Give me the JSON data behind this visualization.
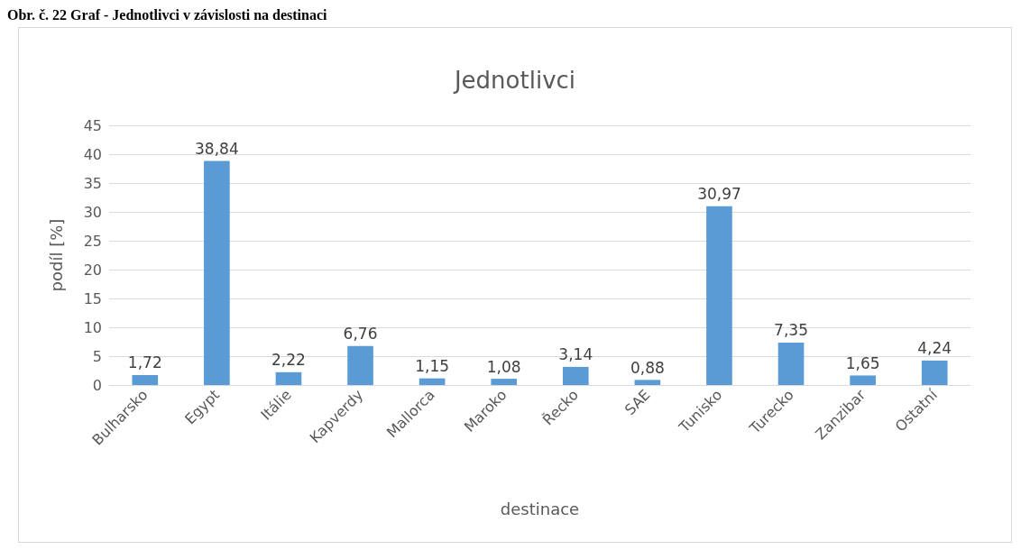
{
  "chart_data": {
    "type": "bar",
    "title": "Jednotlivci",
    "xlabel": "destinace",
    "ylabel": "podíl [%]",
    "annotations": [
      "Obr. č. 22 Graf - Jednotlivci v závislosti na destinaci"
    ],
    "categories": [
      "Bulharsko",
      "Egypt",
      "Itálie",
      "Kapverdy",
      "Mallorca",
      "Maroko",
      "Řecko",
      "SAE",
      "Tunisko",
      "Turecko",
      "Zanzibar",
      "Ostatní"
    ],
    "values": [
      1.72,
      38.84,
      2.22,
      6.76,
      1.15,
      1.08,
      3.14,
      0.88,
      30.97,
      7.35,
      1.65,
      4.24
    ],
    "value_labels": [
      "1,72",
      "38,84",
      "2,22",
      "6,76",
      "1,15",
      "1,08",
      "3,14",
      "0,88",
      "30,97",
      "7,35",
      "1,65",
      "4,24"
    ],
    "color": "#5b9bd5",
    "ylim": [
      0,
      45
    ],
    "yticks": [
      0,
      5,
      10,
      15,
      20,
      25,
      30,
      35,
      40,
      45
    ],
    "grid": "y"
  }
}
